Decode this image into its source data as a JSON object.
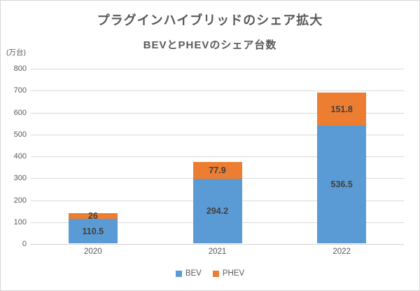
{
  "window": {
    "background": "#ffffff",
    "border_color": "#d6d6d6"
  },
  "chart_data": {
    "type": "bar",
    "stacked": true,
    "title": "プラグインハイブリッドのシェア拡大",
    "subtitle": "BEVとPHEVのシェア台数",
    "unit_label": "(万台)",
    "categories": [
      "2020",
      "2021",
      "2022"
    ],
    "series": [
      {
        "name": "BEV",
        "color": "#5b9bd5",
        "values": [
          110.5,
          294.2,
          536.5
        ]
      },
      {
        "name": "PHEV",
        "color": "#ed7d31",
        "values": [
          26,
          77.9,
          151.8
        ]
      }
    ],
    "stack_totals": [
      136.5,
      372.1,
      688.3
    ],
    "ylim": [
      0,
      800
    ],
    "ytick_step": 100,
    "yticks": [
      0,
      100,
      200,
      300,
      400,
      500,
      600,
      700,
      800
    ],
    "grid": true,
    "gridline_color": "#d9d9d9",
    "value_labels": true,
    "value_label_color": "#404040",
    "axis_text_color": "#595959",
    "title_color": "#595959",
    "legend_position": "bottom",
    "legend_entries": [
      "BEV",
      "PHEV"
    ]
  }
}
